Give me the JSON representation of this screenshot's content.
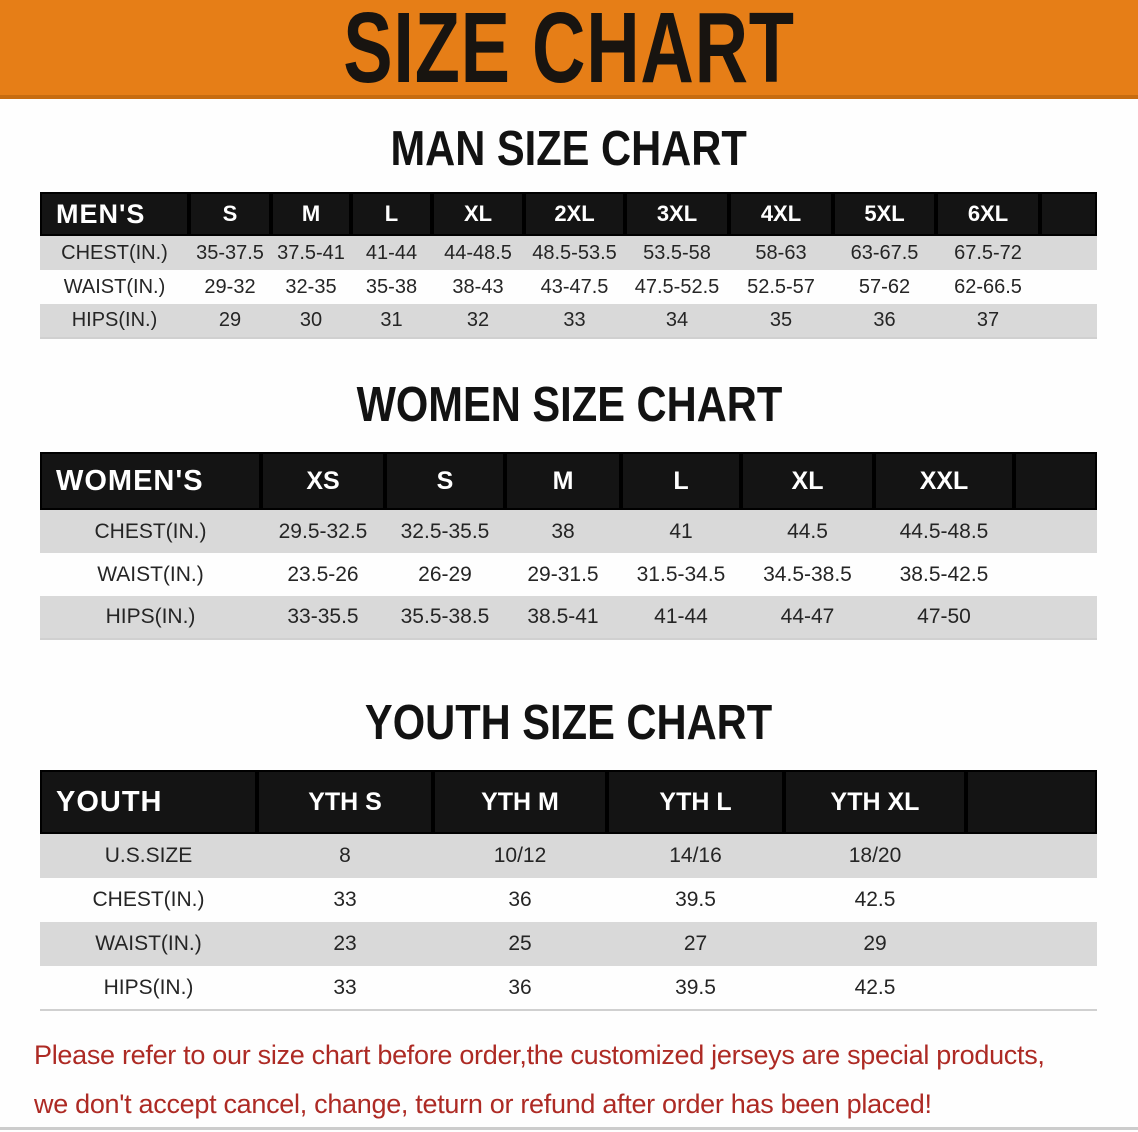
{
  "banner": {
    "title": "SIZE CHART",
    "bg_color": "#e67e17",
    "text_color": "#181410"
  },
  "sections": [
    {
      "title": "MAN SIZE CHART",
      "table": {
        "header": [
          "MEN'S",
          "S",
          "M",
          "L",
          "XL",
          "2XL",
          "3XL",
          "4XL",
          "5XL",
          "6XL"
        ],
        "rows": [
          [
            "CHEST(IN.)",
            "35-37.5",
            "37.5-41",
            "41-44",
            "44-48.5",
            "48.5-53.5",
            "53.5-58",
            "58-63",
            "63-67.5",
            "67.5-72"
          ],
          [
            "WAIST(IN.)",
            "29-32",
            "32-35",
            "35-38",
            "38-43",
            "43-47.5",
            "47.5-52.5",
            "52.5-57",
            "57-62",
            "62-66.5"
          ],
          [
            "HIPS(IN.)",
            "29",
            "30",
            "31",
            "32",
            "33",
            "34",
            "35",
            "36",
            "37"
          ]
        ]
      }
    },
    {
      "title": "WOMEN SIZE CHART",
      "table": {
        "header": [
          "WOMEN'S",
          "XS",
          "S",
          "M",
          "L",
          "XL",
          "XXL"
        ],
        "rows": [
          [
            "CHEST(IN.)",
            "29.5-32.5",
            "32.5-35.5",
            "38",
            "41",
            "44.5",
            "44.5-48.5"
          ],
          [
            "WAIST(IN.)",
            "23.5-26",
            "26-29",
            "29-31.5",
            "31.5-34.5",
            "34.5-38.5",
            "38.5-42.5"
          ],
          [
            "HIPS(IN.)",
            "33-35.5",
            "35.5-38.5",
            "38.5-41",
            "41-44",
            "44-47",
            "47-50"
          ]
        ]
      }
    },
    {
      "title": "YOUTH SIZE CHART",
      "table": {
        "header": [
          "YOUTH",
          "YTH S",
          "YTH M",
          "YTH L",
          "YTH XL"
        ],
        "rows": [
          [
            "U.S.SIZE",
            "8",
            "10/12",
            "14/16",
            "18/20"
          ],
          [
            "CHEST(IN.)",
            "33",
            "36",
            "39.5",
            "42.5"
          ],
          [
            "WAIST(IN.)",
            "23",
            "25",
            "27",
            "29"
          ],
          [
            "HIPS(IN.)",
            "33",
            "36",
            "39.5",
            "42.5"
          ]
        ]
      }
    }
  ],
  "disclaimer": {
    "line1": "Please refer to our size chart before order,the customized jerseys are special products,",
    "line2": "we don't accept cancel, change, teturn or refund after order has been placed!",
    "color": "#ad2a24"
  },
  "colors": {
    "banner_orange": "#e67e17",
    "table_header_black": "#141414",
    "row_gray": "#d9d9d9",
    "row_white": "#fefefe"
  }
}
